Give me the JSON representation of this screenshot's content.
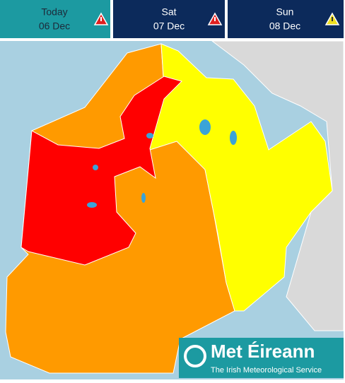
{
  "tabs": [
    {
      "day": "Today",
      "date": "06 Dec"
    },
    {
      "day": "Sat",
      "date": "07 Dec"
    },
    {
      "day": "Sun",
      "date": "08 Dec"
    }
  ],
  "logo": {
    "name": "Met Éireann",
    "tagline": "The Irish Meteorological Service"
  }
}
